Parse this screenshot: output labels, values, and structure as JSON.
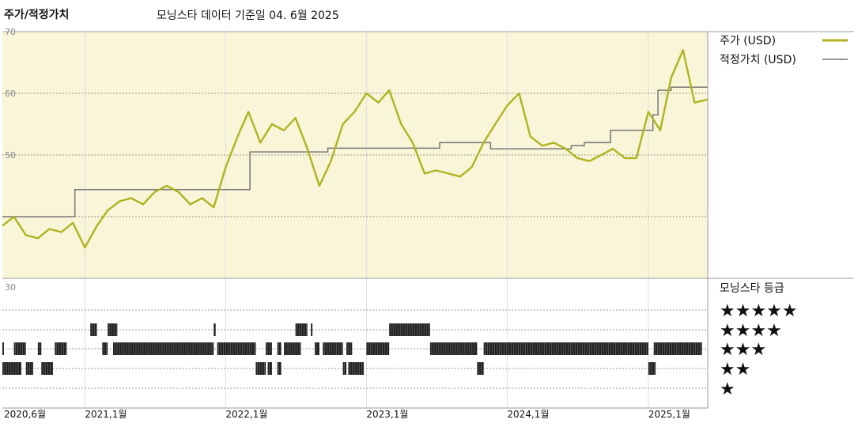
{
  "header": {
    "title": "주가/적정가치",
    "subtitle": "모닝스타 데이터 기준일 04. 6월 2025"
  },
  "legend": {
    "price_label": "주가 (USD)",
    "fair_label": "적정가치 (USD)",
    "rating_title": "모닝스타 등급"
  },
  "colors": {
    "price": "#b0b320",
    "fair": "#777777",
    "panel_bg": "#f8f5d8",
    "rating_bar": "#222222",
    "grid": "#777777"
  },
  "chart_data": {
    "type": "line",
    "x_range": [
      "2020-06-01",
      "2025-06-04"
    ],
    "ylim": [
      30,
      70
    ],
    "yticks": [
      30,
      40,
      50,
      60,
      70
    ],
    "ytick_labels": [
      "30",
      "",
      "50",
      "60",
      "70"
    ],
    "x_ticks": [
      {
        "date": "2020-06-01",
        "label": "2020,6월"
      },
      {
        "date": "2021-01-01",
        "label": "2021,1월"
      },
      {
        "date": "2022-01-01",
        "label": "2022,1월"
      },
      {
        "date": "2023-01-01",
        "label": "2023,1월"
      },
      {
        "date": "2024-01-01",
        "label": "2024,1월"
      },
      {
        "date": "2025-01-01",
        "label": "2025,1월"
      }
    ],
    "series": [
      {
        "name": "주가 (USD)",
        "x": [
          "2020-06-01",
          "2020-07-01",
          "2020-08-01",
          "2020-09-01",
          "2020-10-01",
          "2020-11-01",
          "2020-12-01",
          "2021-01-01",
          "2021-02-01",
          "2021-03-01",
          "2021-04-01",
          "2021-05-01",
          "2021-06-01",
          "2021-07-01",
          "2021-08-01",
          "2021-09-01",
          "2021-10-01",
          "2021-11-01",
          "2021-12-01",
          "2022-01-01",
          "2022-02-01",
          "2022-03-01",
          "2022-04-01",
          "2022-05-01",
          "2022-06-01",
          "2022-07-01",
          "2022-08-01",
          "2022-09-01",
          "2022-10-01",
          "2022-11-01",
          "2022-12-01",
          "2023-01-01",
          "2023-02-01",
          "2023-03-01",
          "2023-04-01",
          "2023-05-01",
          "2023-06-01",
          "2023-07-01",
          "2023-08-01",
          "2023-09-01",
          "2023-10-01",
          "2023-11-01",
          "2023-12-01",
          "2024-01-01",
          "2024-02-01",
          "2024-03-01",
          "2024-04-01",
          "2024-05-01",
          "2024-06-01",
          "2024-07-01",
          "2024-08-01",
          "2024-09-01",
          "2024-10-01",
          "2024-11-01",
          "2024-12-01",
          "2025-01-01",
          "2025-02-01",
          "2025-03-01",
          "2025-04-01",
          "2025-05-01",
          "2025-06-04"
        ],
        "values": [
          38.5,
          40.0,
          37.0,
          36.5,
          38.0,
          37.5,
          39.0,
          35.0,
          38.5,
          41.0,
          42.5,
          43.0,
          42.0,
          44.0,
          45.0,
          44.0,
          42.0,
          43.0,
          41.5,
          48.0,
          53.0,
          57.0,
          52.0,
          55.0,
          54.0,
          56.0,
          51.0,
          45.0,
          49.0,
          55.0,
          57.0,
          60.0,
          58.5,
          60.5,
          55.0,
          52.0,
          47.0,
          47.5,
          47.0,
          46.5,
          48.0,
          52.0,
          55.0,
          58.0,
          60.0,
          53.0,
          51.5,
          52.0,
          51.0,
          49.5,
          49.0,
          50.0,
          51.0,
          49.5,
          49.5,
          57.0,
          54.0,
          62.5,
          67.0,
          58.5,
          59.0
        ]
      },
      {
        "name": "적정가치 (USD)",
        "step": true,
        "x": [
          "2020-06-01",
          "2020-12-06",
          "2021-08-15",
          "2022-03-05",
          "2022-06-27",
          "2022-09-23",
          "2023-07-10",
          "2023-09-14",
          "2023-11-19",
          "2024-03-12",
          "2024-06-15",
          "2024-07-19",
          "2024-09-25",
          "2025-01-13",
          "2025-01-26",
          "2025-03-01",
          "2025-06-04"
        ],
        "values": [
          40.0,
          44.4,
          44.4,
          50.5,
          50.5,
          51.1,
          52.0,
          52.0,
          51.0,
          51.0,
          51.5,
          52.0,
          54.0,
          56.5,
          60.5,
          61.0,
          61.0
        ]
      }
    ],
    "rating": {
      "levels": [
        5,
        4,
        3,
        2,
        1
      ],
      "labels": [
        "★★★★★",
        "★★★★",
        "★★★",
        "★★",
        "★"
      ],
      "segments": [
        {
          "level": 4,
          "from": "2021-01-15",
          "to": "2021-02-01"
        },
        {
          "level": 4,
          "from": "2021-03-01",
          "to": "2021-03-26"
        },
        {
          "level": 4,
          "from": "2021-12-01",
          "to": "2021-12-06"
        },
        {
          "level": 4,
          "from": "2022-07-01",
          "to": "2022-08-01"
        },
        {
          "level": 4,
          "from": "2022-08-10",
          "to": "2022-08-14"
        },
        {
          "level": 4,
          "from": "2023-03-01",
          "to": "2023-06-15"
        },
        {
          "level": 3,
          "from": "2020-06-01",
          "to": "2020-06-05"
        },
        {
          "level": 3,
          "from": "2020-07-01",
          "to": "2020-08-01"
        },
        {
          "level": 3,
          "from": "2020-09-01",
          "to": "2020-09-10"
        },
        {
          "level": 3,
          "from": "2020-10-15",
          "to": "2020-11-15"
        },
        {
          "level": 3,
          "from": "2021-02-15",
          "to": "2021-03-01"
        },
        {
          "level": 3,
          "from": "2021-03-15",
          "to": "2021-12-01"
        },
        {
          "level": 3,
          "from": "2021-12-10",
          "to": "2022-03-20"
        },
        {
          "level": 3,
          "from": "2022-04-15",
          "to": "2022-05-01"
        },
        {
          "level": 3,
          "from": "2022-05-15",
          "to": "2022-05-25"
        },
        {
          "level": 3,
          "from": "2022-06-01",
          "to": "2022-07-15"
        },
        {
          "level": 3,
          "from": "2022-08-20",
          "to": "2022-09-01"
        },
        {
          "level": 3,
          "from": "2022-09-10",
          "to": "2022-11-01"
        },
        {
          "level": 3,
          "from": "2022-11-10",
          "to": "2022-11-25"
        },
        {
          "level": 3,
          "from": "2023-01-01",
          "to": "2023-03-01"
        },
        {
          "level": 3,
          "from": "2023-06-15",
          "to": "2023-10-15"
        },
        {
          "level": 3,
          "from": "2023-11-01",
          "to": "2025-01-01"
        },
        {
          "level": 3,
          "from": "2025-01-15",
          "to": "2025-05-20"
        },
        {
          "level": 2,
          "from": "2020-06-01",
          "to": "2020-07-20"
        },
        {
          "level": 2,
          "from": "2020-08-01",
          "to": "2020-08-20"
        },
        {
          "level": 2,
          "from": "2020-09-10",
          "to": "2020-10-10"
        },
        {
          "level": 2,
          "from": "2022-03-20",
          "to": "2022-04-15"
        },
        {
          "level": 2,
          "from": "2022-04-20",
          "to": "2022-05-01"
        },
        {
          "level": 2,
          "from": "2022-05-15",
          "to": "2022-05-25"
        },
        {
          "level": 2,
          "from": "2022-11-01",
          "to": "2022-11-10"
        },
        {
          "level": 2,
          "from": "2022-11-15",
          "to": "2022-12-25"
        },
        {
          "level": 2,
          "from": "2023-10-15",
          "to": "2023-11-01"
        },
        {
          "level": 2,
          "from": "2025-01-01",
          "to": "2025-01-20"
        }
      ]
    }
  }
}
